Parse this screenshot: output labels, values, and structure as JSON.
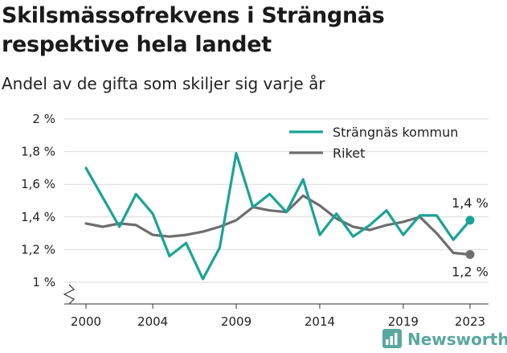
{
  "chart_data": {
    "type": "line",
    "title": "Skilsmässofrekvens i Strängnäs respektive hela landet",
    "subtitle": "Andel av de gifta som skiljer sig varje år",
    "x": [
      2000,
      2001,
      2002,
      2003,
      2004,
      2005,
      2006,
      2007,
      2008,
      2009,
      2010,
      2011,
      2012,
      2013,
      2014,
      2015,
      2016,
      2017,
      2018,
      2019,
      2020,
      2021,
      2022,
      2023
    ],
    "series": [
      {
        "name": "Strängnäs kommun",
        "color": "#1aa396",
        "values": [
          1.7,
          1.52,
          1.34,
          1.54,
          1.42,
          1.16,
          1.24,
          1.02,
          1.21,
          1.79,
          1.46,
          1.54,
          1.43,
          1.63,
          1.29,
          1.42,
          1.28,
          1.35,
          1.44,
          1.29,
          1.41,
          1.41,
          1.26,
          1.38
        ]
      },
      {
        "name": "Riket",
        "color": "#6e6e6e",
        "values": [
          1.36,
          1.34,
          1.36,
          1.35,
          1.29,
          1.28,
          1.29,
          1.31,
          1.34,
          1.38,
          1.46,
          1.44,
          1.43,
          1.53,
          1.47,
          1.39,
          1.34,
          1.32,
          1.35,
          1.37,
          1.4,
          1.3,
          1.18,
          1.17
        ]
      }
    ],
    "end_labels": [
      "1,4 %",
      "1,2 %"
    ],
    "y_ticks": [
      {
        "value": 1.0,
        "label": "1 %"
      },
      {
        "value": 1.2,
        "label": "1,2 %"
      },
      {
        "value": 1.4,
        "label": "1,4 %"
      },
      {
        "value": 1.6,
        "label": "1,6 %"
      },
      {
        "value": 1.8,
        "label": "1,8 %"
      },
      {
        "value": 2.0,
        "label": "2 %"
      }
    ],
    "x_ticks": [
      2000,
      2004,
      2009,
      2014,
      2019,
      2023
    ],
    "xlim": [
      2000,
      2023
    ],
    "ylim": [
      1.0,
      2.0
    ],
    "grid": true,
    "axis_break": true,
    "legend": "top-right"
  },
  "branding": {
    "name": "Newsworthy",
    "color": "#5aa89f"
  }
}
